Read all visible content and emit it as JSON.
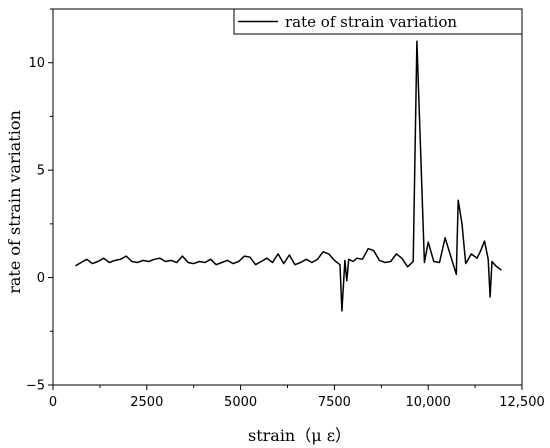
{
  "chart_data": {
    "type": "line",
    "title": "",
    "xlabel": "strain（μ ε）",
    "ylabel": "rate of strain variation",
    "xlim": [
      0,
      12500
    ],
    "ylim": [
      -5,
      12.5
    ],
    "x_ticks": [
      0,
      2500,
      5000,
      7500,
      10000,
      12500
    ],
    "x_tick_labels": [
      "0",
      "2500",
      "5000",
      "7500",
      "10,000",
      "12,500"
    ],
    "y_ticks": [
      -5,
      0,
      5,
      10
    ],
    "y_tick_labels": [
      "−5",
      "0",
      "5",
      "10"
    ],
    "grid": false,
    "legend_position": "top-right",
    "series": [
      {
        "name": "rate of strain variation",
        "color": "#000000",
        "points": [
          [
            600,
            0.55
          ],
          [
            750,
            0.7
          ],
          [
            900,
            0.85
          ],
          [
            1050,
            0.65
          ],
          [
            1200,
            0.75
          ],
          [
            1350,
            0.9
          ],
          [
            1500,
            0.7
          ],
          [
            1650,
            0.8
          ],
          [
            1800,
            0.85
          ],
          [
            1950,
            1.0
          ],
          [
            2100,
            0.75
          ],
          [
            2250,
            0.7
          ],
          [
            2400,
            0.8
          ],
          [
            2550,
            0.75
          ],
          [
            2700,
            0.85
          ],
          [
            2850,
            0.9
          ],
          [
            3000,
            0.75
          ],
          [
            3150,
            0.8
          ],
          [
            3300,
            0.7
          ],
          [
            3450,
            1.0
          ],
          [
            3600,
            0.7
          ],
          [
            3750,
            0.65
          ],
          [
            3900,
            0.75
          ],
          [
            4050,
            0.7
          ],
          [
            4200,
            0.85
          ],
          [
            4350,
            0.6
          ],
          [
            4500,
            0.7
          ],
          [
            4650,
            0.8
          ],
          [
            4800,
            0.65
          ],
          [
            4950,
            0.75
          ],
          [
            5100,
            1.0
          ],
          [
            5250,
            0.95
          ],
          [
            5400,
            0.6
          ],
          [
            5550,
            0.75
          ],
          [
            5700,
            0.9
          ],
          [
            5850,
            0.7
          ],
          [
            6000,
            1.1
          ],
          [
            6150,
            0.65
          ],
          [
            6300,
            1.05
          ],
          [
            6450,
            0.6
          ],
          [
            6600,
            0.7
          ],
          [
            6750,
            0.85
          ],
          [
            6900,
            0.7
          ],
          [
            7050,
            0.85
          ],
          [
            7200,
            1.2
          ],
          [
            7350,
            1.1
          ],
          [
            7500,
            0.8
          ],
          [
            7650,
            0.6
          ],
          [
            7700,
            -1.55
          ],
          [
            7780,
            0.8
          ],
          [
            7830,
            -0.15
          ],
          [
            7880,
            0.85
          ],
          [
            8000,
            0.75
          ],
          [
            8100,
            0.9
          ],
          [
            8250,
            0.85
          ],
          [
            8400,
            1.35
          ],
          [
            8550,
            1.25
          ],
          [
            8700,
            0.8
          ],
          [
            8850,
            0.7
          ],
          [
            9000,
            0.75
          ],
          [
            9150,
            1.1
          ],
          [
            9300,
            0.9
          ],
          [
            9450,
            0.5
          ],
          [
            9600,
            0.75
          ],
          [
            9700,
            11.0
          ],
          [
            9900,
            0.7
          ],
          [
            10000,
            1.65
          ],
          [
            10150,
            0.75
          ],
          [
            10300,
            0.7
          ],
          [
            10450,
            1.85
          ],
          [
            10600,
            1.0
          ],
          [
            10750,
            0.15
          ],
          [
            10800,
            3.6
          ],
          [
            10900,
            2.5
          ],
          [
            11000,
            0.65
          ],
          [
            11150,
            1.1
          ],
          [
            11300,
            0.9
          ],
          [
            11400,
            1.25
          ],
          [
            11500,
            1.7
          ],
          [
            11600,
            0.85
          ],
          [
            11650,
            -0.9
          ],
          [
            11700,
            0.75
          ],
          [
            11800,
            0.55
          ],
          [
            11950,
            0.35
          ]
        ]
      }
    ]
  }
}
